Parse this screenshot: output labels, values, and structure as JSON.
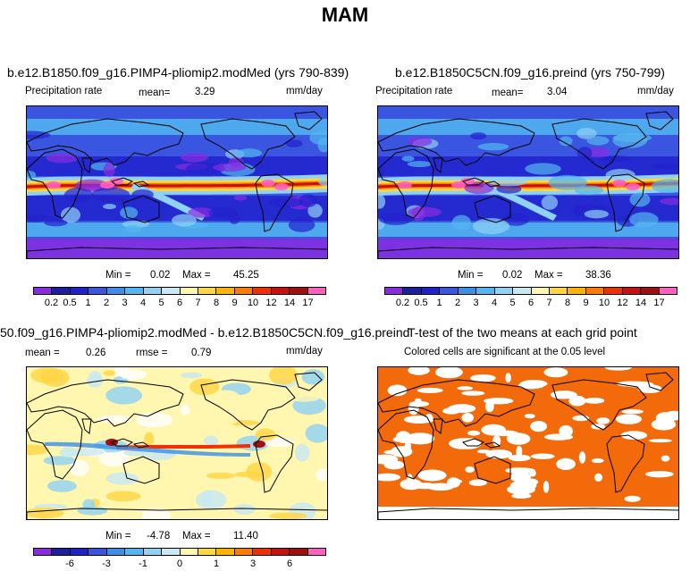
{
  "title": "MAM",
  "chart_data": [
    {
      "type": "heatmap",
      "title": "b.e12.B1850.f09_g16.PIMP4-pliomip2.modMed (yrs 790-839)",
      "variable_label": "Precipitation rate",
      "mean_label": "mean=",
      "mean_value": "3.29",
      "units": "mm/day",
      "min_label": "Min =",
      "min_value": "0.02",
      "max_label": "Max =",
      "max_value": "45.25",
      "colorbar_labels": [
        "0.2",
        "0.5",
        "1",
        "2",
        "3",
        "4",
        "5",
        "6",
        "7",
        "8",
        "9",
        "10",
        "12",
        "14",
        "17"
      ],
      "colorbar_colors": [
        "#8a2be2",
        "#1e1ea0",
        "#2222cc",
        "#3a56e0",
        "#3c8ee8",
        "#52b6f0",
        "#8fd2f6",
        "#c8e8f4",
        "#fff6b0",
        "#ffd642",
        "#ffb200",
        "#ff7a00",
        "#f03000",
        "#c81010",
        "#a01010",
        "#ff60c0"
      ]
    },
    {
      "type": "heatmap",
      "title": "b.e12.B1850C5CN.f09_g16.preind (yrs 750-799)",
      "variable_label": "Precipitation rate",
      "mean_label": "mean=",
      "mean_value": "3.04",
      "units": "mm/day",
      "min_label": "Min =",
      "min_value": "0.02",
      "max_label": "Max =",
      "max_value": "38.36",
      "colorbar_labels": [
        "0.2",
        "0.5",
        "1",
        "2",
        "3",
        "4",
        "5",
        "6",
        "7",
        "8",
        "9",
        "10",
        "12",
        "14",
        "17"
      ],
      "colorbar_colors": [
        "#8a2be2",
        "#1e1ea0",
        "#2222cc",
        "#3a56e0",
        "#3c8ee8",
        "#52b6f0",
        "#8fd2f6",
        "#c8e8f4",
        "#fff6b0",
        "#ffd642",
        "#ffb200",
        "#ff7a00",
        "#f03000",
        "#c81010",
        "#a01010",
        "#ff60c0"
      ]
    },
    {
      "type": "heatmap",
      "title": "50.f09_g16.PIMP4-pliomip2.modMed - b.e12.B1850C5CN.f09_g16.preind",
      "mean_label": "mean =",
      "mean_value": "0.26",
      "rmse_label": "rmse =",
      "rmse_value": "0.79",
      "units": "mm/day",
      "min_label": "Min =",
      "min_value": "-4.78",
      "max_label": "Max =",
      "max_value": "11.40",
      "colorbar_labels": [
        "-6",
        "-3",
        "-1",
        "0",
        "1",
        "3",
        "6"
      ],
      "colorbar_colors": [
        "#8a2be2",
        "#1e1ea0",
        "#2222cc",
        "#3a56e0",
        "#3c8ee8",
        "#52b6f0",
        "#8fd2f6",
        "#c8e8f4",
        "#fff6b0",
        "#ffd642",
        "#ffb200",
        "#ff7a00",
        "#f03000",
        "#c81010",
        "#a01010",
        "#ff60c0"
      ]
    },
    {
      "type": "heatmap",
      "title": "T-test of the two means at each grid point",
      "subtitle": "Colored cells are significant at the 0.05 level",
      "significant_color": "#f26a0a"
    }
  ]
}
